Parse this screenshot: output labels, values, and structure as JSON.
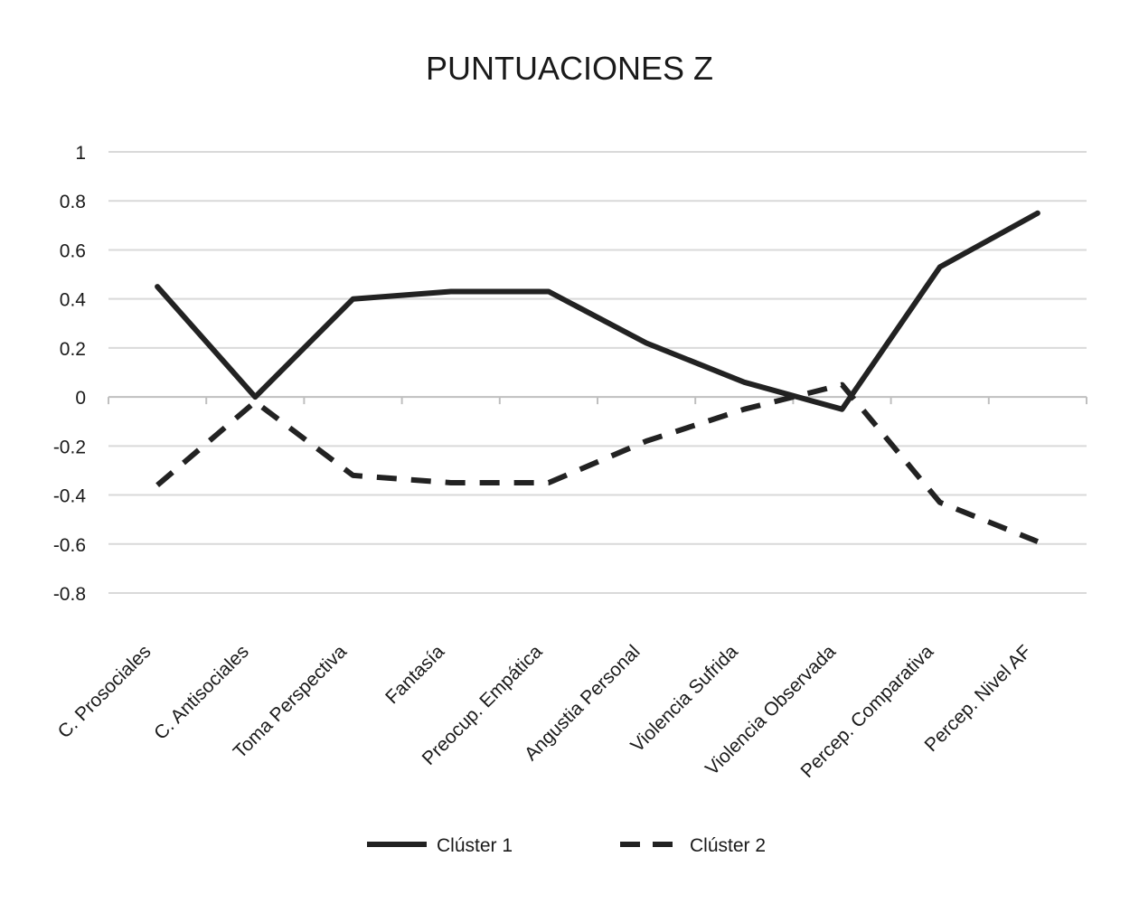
{
  "chart_data": {
    "type": "line",
    "title": "PUNTUACIONES Z",
    "xlabel": "",
    "ylabel": "",
    "ylim": [
      -0.8,
      1
    ],
    "yticks": [
      1,
      0.8,
      0.6,
      0.4,
      0.2,
      0,
      -0.2,
      -0.4,
      -0.6,
      -0.8
    ],
    "ytick_labels": [
      "1",
      "0.8",
      "0.6",
      "0.4",
      "0.2",
      "0",
      "-0.2",
      "-0.4",
      "-0.6",
      "-0.8"
    ],
    "grid": true,
    "legend_position": "bottom",
    "categories": [
      "C. Prosociales",
      "C. Antisociales",
      "Toma Perspectiva",
      "Fantasía",
      "Preocup. Empática",
      "Angustia Personal",
      "Violencia Sufrida",
      "Violencia Observada",
      "Percep. Comparativa",
      "Percep. Nivel AF"
    ],
    "series": [
      {
        "name": "Clúster 1",
        "style": "solid",
        "color": "#222222",
        "values": [
          0.45,
          0.0,
          0.4,
          0.43,
          0.43,
          0.22,
          0.06,
          -0.05,
          0.53,
          0.75
        ]
      },
      {
        "name": "Clúster 2",
        "style": "dashed",
        "color": "#222222",
        "values": [
          -0.36,
          -0.02,
          -0.32,
          -0.35,
          -0.35,
          -0.18,
          -0.05,
          0.05,
          -0.43,
          -0.59
        ]
      }
    ]
  },
  "colors": {
    "grid": "#d9d9d9",
    "axis": "#bfbfbf",
    "line": "#222222",
    "text": "#1a1a1a"
  }
}
